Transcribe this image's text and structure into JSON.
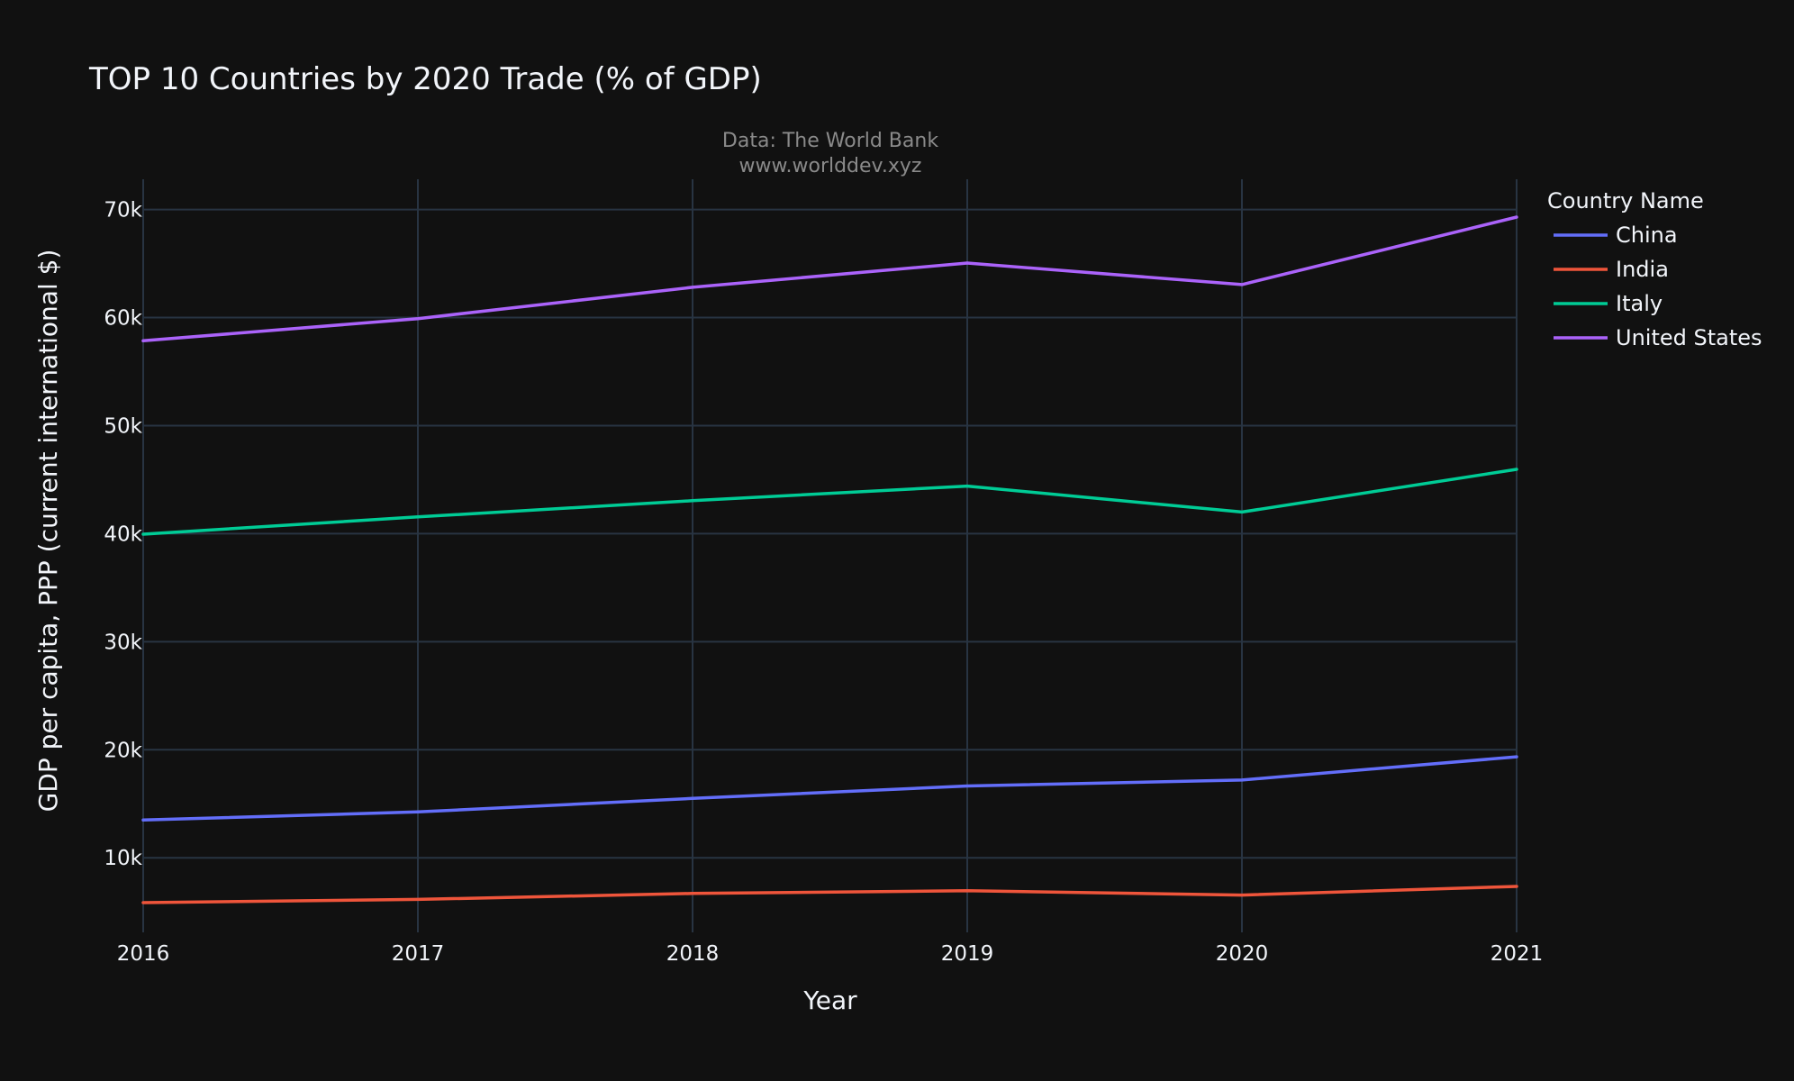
{
  "chart_data": {
    "type": "line",
    "title": "TOP 10 Countries by 2020 Trade (% of GDP)",
    "annotation": [
      "Data: The World Bank",
      "www.worlddev.xyz"
    ],
    "xlabel": "Year",
    "ylabel": "GDP per capita, PPP (current international $)",
    "x": [
      2016,
      2017,
      2018,
      2019,
      2020,
      2021
    ],
    "x_tick_labels": [
      "2016",
      "2017",
      "2018",
      "2019",
      "2020",
      "2021"
    ],
    "xlim": [
      2016,
      2021
    ],
    "y_ticks": [
      10000,
      20000,
      30000,
      40000,
      50000,
      60000,
      70000
    ],
    "y_tick_labels": [
      "10k",
      "20k",
      "30k",
      "40k",
      "50k",
      "60k",
      "70k"
    ],
    "ylim": [
      3100,
      72800
    ],
    "grid": true,
    "legend": {
      "title": "Country Name",
      "placement": "right"
    },
    "series": [
      {
        "name": "China",
        "color": "#636efa",
        "values": [
          13500,
          14250,
          15500,
          16650,
          17200,
          19350
        ]
      },
      {
        "name": "India",
        "color": "#ef553b",
        "values": [
          5850,
          6150,
          6700,
          6950,
          6550,
          7350
        ]
      },
      {
        "name": "Italy",
        "color": "#00cc96",
        "values": [
          39950,
          41550,
          43050,
          44400,
          42000,
          45950
        ]
      },
      {
        "name": "United States",
        "color": "#ab63fa",
        "values": [
          57850,
          59900,
          62800,
          65050,
          63050,
          69300
        ]
      }
    ]
  }
}
